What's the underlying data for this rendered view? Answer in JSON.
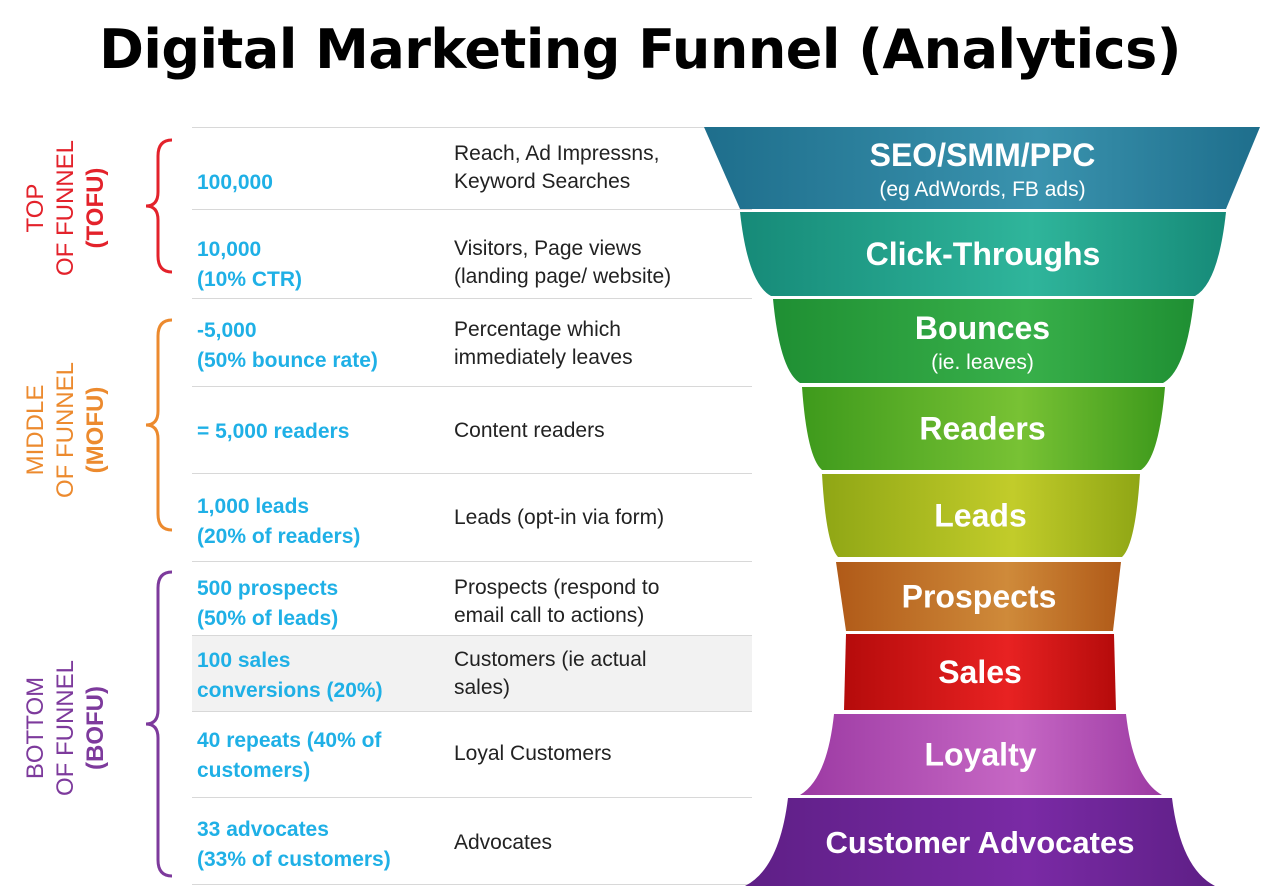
{
  "title": "Digital Marketing Funnel (Analytics)",
  "stages": [
    {
      "line1": "TOP",
      "line2": "OF FUNNEL",
      "abbr": "(TOFU)",
      "color": "#e3222b"
    },
    {
      "line1": "MIDDLE",
      "line2": "OF FUNNEL",
      "abbr": "(MOFU)",
      "color": "#ec8a2e"
    },
    {
      "line1": "BOTTOM",
      "line2": "OF FUNNEL",
      "abbr": "(BOFU)",
      "color": "#7d3a9c"
    }
  ],
  "rows": [
    {
      "metric": "100,000",
      "desc": "Reach, Ad Impressns,\nKeyword Searches"
    },
    {
      "metric": "10,000\n(10% CTR)",
      "desc": "Visitors, Page views\n(landing page/ website)"
    },
    {
      "metric": "-5,000\n(50% bounce rate)",
      "desc": "Percentage which\nimmediately leaves"
    },
    {
      "metric": "= 5,000 readers",
      "desc": "Content readers"
    },
    {
      "metric": "1,000 leads\n(20% of readers)",
      "desc": "Leads (opt-in via form)"
    },
    {
      "metric": "500 prospects\n(50% of leads)",
      "desc": "Prospects (respond to\nemail call to actions)"
    },
    {
      "metric": "100 sales\nconversions (20%)",
      "desc": "Customers (ie actual\nsales)"
    },
    {
      "metric": "40 repeats (40% of\ncustomers)",
      "desc": "Loyal Customers"
    },
    {
      "metric": "33 advocates\n(33% of customers)",
      "desc": "Advocates"
    }
  ],
  "funnel": [
    {
      "label": "SEO/SMM/PPC",
      "sublabel": "(eg AdWords, FB ads)",
      "colors": [
        "#1e6e8c",
        "#3a93ae"
      ]
    },
    {
      "label": "Click-Throughs",
      "sublabel": "",
      "colors": [
        "#168a78",
        "#2fb59b"
      ]
    },
    {
      "label": "Bounces",
      "sublabel": "(ie. leaves)",
      "colors": [
        "#1f8f33",
        "#38b04a"
      ]
    },
    {
      "label": "Readers",
      "sublabel": "",
      "colors": [
        "#3e9a1c",
        "#78c234"
      ]
    },
    {
      "label": "Leads",
      "sublabel": "",
      "colors": [
        "#8fa615",
        "#c2cc2a"
      ]
    },
    {
      "label": "Prospects",
      "sublabel": "",
      "colors": [
        "#b05a18",
        "#cf8a3a"
      ]
    },
    {
      "label": "Sales",
      "sublabel": "",
      "colors": [
        "#b50b0b",
        "#e82222"
      ]
    },
    {
      "label": "Loyalty",
      "sublabel": "",
      "colors": [
        "#9c3aa3",
        "#c667c4"
      ]
    },
    {
      "label": "Customer Advocates",
      "sublabel": "",
      "colors": [
        "#5e1f86",
        "#7a2aa5"
      ]
    }
  ]
}
